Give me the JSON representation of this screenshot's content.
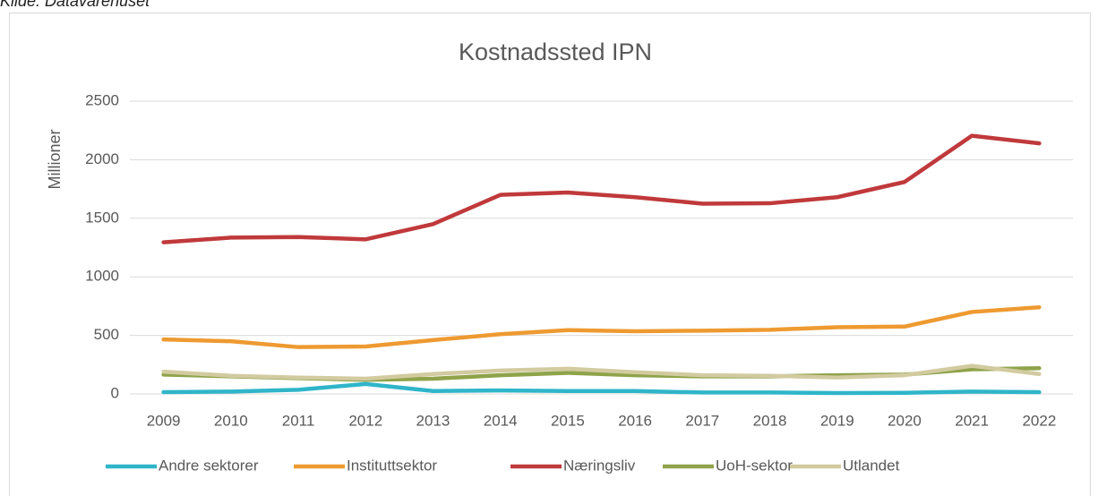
{
  "source": "Kilde: Datavarehuset",
  "chart_data": {
    "type": "line",
    "title": "Kostnadssted IPN",
    "y_label": "Millioner",
    "categories": [
      "2009",
      "2010",
      "2011",
      "2012",
      "2013",
      "2014",
      "2015",
      "2016",
      "2017",
      "2018",
      "2019",
      "2020",
      "2021",
      "2022"
    ],
    "ylim": [
      0,
      2500
    ],
    "yticks": [
      0,
      500,
      1000,
      1500,
      2000,
      2500
    ],
    "grid": true,
    "legend": "bottom",
    "series": [
      {
        "name": "Andre sektorer",
        "color": "#2fb5c9",
        "values": [
          15,
          20,
          35,
          85,
          25,
          30,
          25,
          25,
          12,
          12,
          8,
          10,
          20,
          15
        ]
      },
      {
        "name": "Instituttsektor",
        "color": "#ee9a31",
        "values": [
          465,
          450,
          400,
          405,
          460,
          510,
          545,
          535,
          540,
          548,
          570,
          575,
          700,
          740
        ]
      },
      {
        "name": "Næringsliv",
        "color": "#c0393b",
        "values": [
          1295,
          1335,
          1340,
          1320,
          1450,
          1700,
          1720,
          1680,
          1625,
          1628,
          1680,
          1810,
          2205,
          2140
        ]
      },
      {
        "name": "UoH-sektor",
        "color": "#8fa34a",
        "values": [
          165,
          150,
          135,
          120,
          130,
          160,
          180,
          160,
          150,
          150,
          160,
          165,
          210,
          220
        ]
      },
      {
        "name": "Utlandet",
        "color": "#d2cba0",
        "values": [
          190,
          155,
          140,
          130,
          170,
          200,
          215,
          185,
          160,
          155,
          140,
          160,
          240,
          170
        ]
      }
    ]
  }
}
